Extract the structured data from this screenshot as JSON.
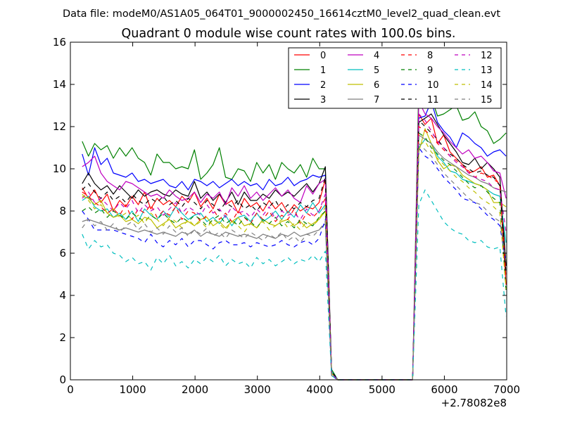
{
  "suptitle": "Data file: modeM0/AS1A05_064T01_9000002450_16614cztM0_level2_quad_clean.evt",
  "chart_data": {
    "type": "line",
    "title": "Quadrant 0 module wise count rates with 100.0s bins.",
    "xlabel": "",
    "ylabel": "",
    "x_offset_label": "+2.78082e8",
    "xlim": [
      0,
      7000
    ],
    "ylim": [
      0,
      16
    ],
    "x_ticks": [
      "0",
      "1000",
      "2000",
      "3000",
      "4000",
      "5000",
      "6000",
      "7000"
    ],
    "y_ticks": [
      "0",
      "2",
      "4",
      "6",
      "8",
      "10",
      "12",
      "14",
      "16"
    ],
    "grid": false,
    "legend_position": "top-right",
    "legend_columns": 4,
    "x_gap": 4500,
    "x_seg1": [
      190,
      290,
      390,
      490,
      590,
      690,
      790,
      890,
      990,
      1090,
      1190,
      1290,
      1390,
      1490,
      1590,
      1690,
      1790,
      1890,
      1990,
      2090,
      2190,
      2290,
      2390,
      2490,
      2590,
      2690,
      2790,
      2890,
      2990,
      3090,
      3190,
      3290,
      3390,
      3490,
      3590,
      3690,
      3790,
      3890,
      3990,
      4090,
      4190,
      4290,
      4390,
      4490
    ],
    "x_seg2": [
      5490,
      5590,
      5690,
      5790,
      5890,
      5990,
      6090,
      6190,
      6290,
      6390,
      6490,
      6590,
      6690,
      6790,
      6890,
      6990
    ],
    "series": [
      {
        "name": "0",
        "color": "#ff0000",
        "dash": "solid",
        "seg1": [
          9.1,
          8.6,
          9.0,
          8.4,
          8.8,
          8.0,
          8.5,
          8.2,
          8.7,
          8.3,
          8.9,
          8.1,
          8.6,
          8.3,
          8.5,
          8.2,
          8.7,
          8.4,
          8.9,
          8.2,
          8.6,
          8.1,
          8.8,
          8.3,
          8.5,
          7.9,
          8.6,
          8.2,
          8.4,
          8.0,
          8.5,
          8.1,
          8.4,
          7.9,
          8.3,
          8.0,
          8.2,
          8.1,
          8.4,
          9.5,
          0.4,
          0,
          0,
          0
        ],
        "seg2": [
          0,
          12.6,
          12.1,
          12.4,
          11.2,
          11.6,
          10.8,
          10.5,
          10.2,
          9.8,
          9.9,
          10.1,
          9.6,
          9.7,
          9.2,
          4.5
        ]
      },
      {
        "name": "1",
        "color": "#008000",
        "dash": "solid",
        "seg1": [
          11.3,
          10.6,
          11.2,
          10.9,
          11.1,
          10.5,
          11.0,
          10.6,
          11.0,
          10.5,
          10.3,
          9.7,
          10.7,
          10.3,
          10.3,
          10.0,
          10.1,
          10.0,
          10.9,
          9.5,
          9.8,
          10.2,
          11.0,
          9.6,
          9.5,
          10.0,
          9.9,
          9.4,
          10.3,
          9.8,
          10.2,
          9.5,
          10.3,
          10.0,
          9.8,
          10.2,
          9.6,
          10.5,
          10.0,
          10.0,
          0.5,
          0,
          0,
          0
        ],
        "seg2": [
          0,
          14.1,
          14.0,
          13.4,
          12.5,
          12.6,
          12.8,
          13.0,
          12.3,
          12.4,
          12.7,
          12.0,
          11.8,
          11.2,
          11.4,
          11.7
        ]
      },
      {
        "name": "2",
        "color": "#0000ff",
        "dash": "solid",
        "seg1": [
          10.7,
          9.7,
          11.0,
          10.2,
          10.5,
          9.8,
          9.7,
          9.6,
          9.8,
          9.4,
          9.5,
          9.3,
          9.4,
          9.5,
          9.2,
          9.1,
          9.4,
          9.0,
          9.5,
          9.4,
          9.2,
          9.4,
          9.1,
          9.3,
          9.5,
          9.2,
          9.4,
          9.2,
          9.3,
          9.0,
          9.5,
          9.2,
          9.3,
          9.6,
          9.2,
          9.4,
          9.5,
          9.7,
          9.6,
          9.7,
          0.4,
          0,
          0,
          0
        ],
        "seg2": [
          0,
          12.4,
          12.5,
          13.2,
          12.2,
          11.8,
          11.5,
          11.0,
          11.7,
          11.5,
          11.2,
          11.0,
          10.6,
          10.8,
          10.9,
          10.6
        ]
      },
      {
        "name": "3",
        "color": "#000000",
        "dash": "solid",
        "seg1": [
          9.3,
          9.8,
          9.3,
          9.0,
          9.2,
          8.8,
          9.2,
          8.9,
          8.6,
          9.0,
          8.7,
          8.9,
          9.0,
          8.8,
          8.7,
          9.0,
          8.8,
          8.7,
          9.4,
          8.6,
          8.9,
          8.5,
          8.8,
          8.4,
          8.9,
          8.3,
          8.9,
          8.5,
          8.5,
          8.8,
          8.6,
          9.0,
          8.7,
          8.9,
          8.7,
          9.0,
          9.3,
          8.9,
          9.3,
          10.1,
          0.4,
          0,
          0,
          0
        ],
        "seg2": [
          0,
          12.2,
          12.4,
          12.6,
          12.1,
          11.6,
          11.2,
          10.8,
          10.3,
          10.2,
          10.5,
          10.0,
          10.3,
          10.0,
          9.6,
          5.4
        ]
      },
      {
        "name": "4",
        "color": "#bf00bf",
        "dash": "solid",
        "seg1": [
          10.1,
          10.3,
          10.6,
          9.8,
          9.4,
          9.2,
          9.0,
          9.4,
          9.3,
          9.1,
          8.9,
          8.7,
          8.8,
          8.6,
          9.0,
          8.7,
          8.5,
          8.6,
          8.9,
          8.4,
          8.8,
          8.6,
          8.9,
          8.3,
          9.1,
          8.7,
          9.2,
          8.6,
          8.9,
          8.5,
          8.8,
          9.1,
          8.7,
          9.0,
          8.6,
          8.4,
          9.2,
          8.8,
          9.3,
          9.5,
          0.3,
          0,
          0,
          0
        ],
        "seg2": [
          0,
          13.2,
          12.6,
          12.4,
          12.0,
          11.7,
          11.3,
          11.0,
          10.7,
          10.9,
          10.5,
          10.6,
          10.3,
          9.9,
          9.8,
          8.6
        ]
      },
      {
        "name": "5",
        "color": "#00bfbf",
        "dash": "solid",
        "seg1": [
          8.5,
          8.7,
          8.2,
          8.0,
          8.1,
          7.7,
          7.9,
          7.6,
          8.0,
          7.5,
          8.1,
          7.8,
          7.6,
          8.0,
          7.7,
          8.2,
          7.9,
          7.6,
          7.8,
          7.9,
          7.5,
          7.7,
          7.4,
          7.8,
          7.3,
          7.7,
          7.8,
          7.5,
          7.9,
          7.5,
          7.7,
          8.0,
          7.6,
          8.0,
          7.7,
          8.3,
          7.9,
          8.4,
          7.9,
          8.3,
          0.4,
          0,
          0,
          0
        ],
        "seg2": [
          0,
          11.0,
          11.4,
          11.2,
          10.6,
          10.3,
          9.9,
          9.8,
          9.5,
          9.4,
          9.3,
          9.2,
          9.0,
          8.8,
          8.7,
          6.5
        ]
      },
      {
        "name": "6",
        "color": "#bfbf00",
        "dash": "solid",
        "seg1": [
          8.7,
          8.6,
          8.3,
          8.5,
          7.9,
          7.7,
          7.8,
          7.5,
          7.6,
          7.4,
          7.7,
          7.6,
          7.2,
          7.4,
          7.6,
          7.2,
          7.4,
          7.5,
          7.3,
          7.6,
          7.7,
          7.3,
          7.5,
          7.2,
          7.5,
          7.7,
          7.3,
          7.4,
          7.2,
          7.6,
          7.4,
          7.3,
          7.5,
          7.6,
          7.3,
          7.5,
          7.2,
          7.4,
          7.6,
          8.0,
          0.3,
          0,
          0,
          0
        ],
        "seg2": [
          0,
          10.8,
          11.9,
          11.2,
          10.4,
          10.0,
          10.2,
          10.1,
          9.7,
          9.5,
          9.3,
          9.2,
          9.0,
          8.4,
          8.4,
          8.2
        ]
      },
      {
        "name": "7",
        "color": "#7f7f7f",
        "dash": "solid",
        "seg1": [
          7.5,
          7.6,
          7.5,
          7.4,
          7.3,
          7.2,
          7.1,
          7.2,
          7.1,
          7.0,
          7.1,
          7.0,
          6.9,
          7.0,
          6.9,
          6.8,
          7.0,
          6.9,
          7.1,
          6.8,
          7.0,
          6.9,
          6.8,
          7.0,
          6.9,
          6.8,
          6.9,
          6.8,
          6.7,
          6.9,
          6.8,
          6.7,
          6.9,
          6.8,
          7.0,
          6.8,
          6.9,
          7.0,
          7.1,
          7.4,
          0.2,
          0,
          0,
          0
        ],
        "seg2": [
          0,
          11.6,
          11.4,
          11.2,
          10.8,
          10.5,
          10.3,
          10.1,
          9.9,
          9.7,
          9.6,
          9.4,
          9.3,
          9.1,
          9.0,
          8.9
        ]
      },
      {
        "name": "8",
        "color": "#ff0000",
        "dash": "dash",
        "seg1": [
          8.9,
          8.7,
          8.4,
          8.2,
          7.9,
          8.1,
          7.8,
          8.3,
          7.6,
          8.1,
          7.9,
          8.3,
          7.7,
          8.0,
          7.8,
          8.2,
          7.6,
          8.0,
          7.9,
          7.5,
          7.8,
          8.1,
          7.6,
          7.9,
          7.5,
          8.0,
          7.7,
          7.4,
          7.9,
          7.6,
          8.0,
          7.5,
          7.8,
          7.6,
          8.1,
          7.4,
          7.9,
          7.7,
          8.0,
          8.6,
          0.3,
          0,
          0,
          0
        ],
        "seg2": [
          0,
          12.0,
          11.8,
          11.6,
          11.2,
          10.9,
          10.6,
          10.4,
          10.1,
          9.9,
          9.6,
          9.8,
          9.7,
          9.5,
          9.3,
          4.8
        ]
      },
      {
        "name": "9",
        "color": "#008000",
        "dash": "dash",
        "seg1": [
          8.0,
          8.2,
          7.9,
          8.1,
          7.7,
          8.0,
          7.8,
          7.6,
          7.9,
          7.7,
          7.5,
          7.8,
          7.6,
          7.9,
          7.6,
          7.4,
          7.7,
          7.5,
          7.8,
          7.6,
          7.3,
          7.6,
          7.8,
          7.4,
          7.6,
          7.3,
          7.7,
          7.5,
          7.2,
          7.6,
          7.4,
          7.7,
          7.3,
          7.5,
          7.2,
          7.6,
          7.4,
          7.3,
          7.7,
          8.0,
          0.3,
          0,
          0,
          0
        ],
        "seg2": [
          0,
          11.7,
          11.5,
          11.0,
          10.7,
          10.4,
          10.2,
          9.9,
          9.6,
          9.3,
          9.1,
          9.2,
          8.9,
          8.6,
          8.4,
          4.2
        ]
      },
      {
        "name": "10",
        "color": "#0000ff",
        "dash": "dash",
        "seg1": [
          8.0,
          7.6,
          7.1,
          7.1,
          7.1,
          7.1,
          7.0,
          6.9,
          6.8,
          6.7,
          6.5,
          6.9,
          6.5,
          6.3,
          6.6,
          6.4,
          6.7,
          6.3,
          6.6,
          6.6,
          6.4,
          6.2,
          6.5,
          6.6,
          6.4,
          6.4,
          6.5,
          6.3,
          6.5,
          6.4,
          6.3,
          6.4,
          6.6,
          6.4,
          6.3,
          6.5,
          6.6,
          6.4,
          6.7,
          7.6,
          0.2,
          0,
          0,
          0
        ],
        "seg2": [
          0,
          11.0,
          10.6,
          10.4,
          10.0,
          9.6,
          9.3,
          9.0,
          8.6,
          8.5,
          8.4,
          8.1,
          7.8,
          7.6,
          7.3,
          5.5
        ]
      },
      {
        "name": "11",
        "color": "#000000",
        "dash": "dash",
        "seg1": [
          9.0,
          9.3,
          8.9,
          8.6,
          8.9,
          8.5,
          8.7,
          8.4,
          8.8,
          8.5,
          8.3,
          8.6,
          8.4,
          8.7,
          8.3,
          8.5,
          8.2,
          8.6,
          8.4,
          8.1,
          8.5,
          8.3,
          8.0,
          8.4,
          8.2,
          8.5,
          8.1,
          8.3,
          8.0,
          8.4,
          8.2,
          8.5,
          8.0,
          8.3,
          8.1,
          8.4,
          8.2,
          8.5,
          8.6,
          9.6,
          0.4,
          0,
          0,
          0
        ],
        "seg2": [
          0,
          12.3,
          12.0,
          11.7,
          11.4,
          11.0,
          10.7,
          10.5,
          10.2,
          10.0,
          9.8,
          9.9,
          9.7,
          9.6,
          9.2,
          5.0
        ]
      },
      {
        "name": "12",
        "color": "#bf00bf",
        "dash": "dash",
        "seg1": [
          8.6,
          8.9,
          8.4,
          8.6,
          8.3,
          8.0,
          8.4,
          8.1,
          8.5,
          7.9,
          8.3,
          8.0,
          8.2,
          7.8,
          8.1,
          8.4,
          7.9,
          8.2,
          8.0,
          7.8,
          8.3,
          7.9,
          8.1,
          7.7,
          8.2,
          7.9,
          8.0,
          7.7,
          8.1,
          7.8,
          8.2,
          7.6,
          8.0,
          7.8,
          7.9,
          7.6,
          8.1,
          7.8,
          8.0,
          8.8,
          0.3,
          0,
          0,
          0
        ],
        "seg2": [
          0,
          12.6,
          12.3,
          11.8,
          11.3,
          11.0,
          10.6,
          10.3,
          10.1,
          9.8,
          9.6,
          9.5,
          9.4,
          9.1,
          9.0,
          7.0
        ]
      },
      {
        "name": "13",
        "color": "#00bfbf",
        "dash": "dash",
        "seg1": [
          6.9,
          6.2,
          6.6,
          6.3,
          6.4,
          6.0,
          5.9,
          5.6,
          5.8,
          5.5,
          5.6,
          5.2,
          5.8,
          5.5,
          5.9,
          5.4,
          5.6,
          5.3,
          5.7,
          5.5,
          5.8,
          5.6,
          5.9,
          5.4,
          5.7,
          5.5,
          5.6,
          5.3,
          5.8,
          5.5,
          5.7,
          5.4,
          5.6,
          5.8,
          5.5,
          5.7,
          5.6,
          5.9,
          5.6,
          6.1,
          0.2,
          0,
          0,
          0
        ],
        "seg2": [
          0,
          8.3,
          9.0,
          8.5,
          8.0,
          7.5,
          7.2,
          7.0,
          6.9,
          6.6,
          6.5,
          6.6,
          6.3,
          6.2,
          6.3,
          3.0
        ]
      },
      {
        "name": "14",
        "color": "#bfbf00",
        "dash": "dash",
        "seg1": [
          8.8,
          8.5,
          8.1,
          8.3,
          7.9,
          8.1,
          7.7,
          7.9,
          7.6,
          7.8,
          7.4,
          7.9,
          7.6,
          7.3,
          7.7,
          7.5,
          7.2,
          7.6,
          7.3,
          7.5,
          7.2,
          7.6,
          7.4,
          7.1,
          7.5,
          7.3,
          7.0,
          7.4,
          7.2,
          7.5,
          7.1,
          7.3,
          7.6,
          7.2,
          7.4,
          7.1,
          7.5,
          7.3,
          7.6,
          8.2,
          0.3,
          0,
          0,
          0
        ],
        "seg2": [
          0,
          11.1,
          11.3,
          10.8,
          10.5,
          10.2,
          9.9,
          9.6,
          9.4,
          9.1,
          8.9,
          8.6,
          8.4,
          8.2,
          7.9,
          4.3
        ]
      },
      {
        "name": "15",
        "color": "#7f7f7f",
        "dash": "dash",
        "seg1": [
          7.2,
          7.6,
          7.3,
          7.5,
          7.1,
          7.4,
          7.0,
          7.3,
          7.5,
          7.1,
          7.4,
          7.0,
          7.2,
          6.9,
          7.3,
          7.0,
          7.2,
          6.8,
          7.1,
          6.9,
          7.2,
          6.8,
          7.0,
          6.7,
          7.1,
          6.9,
          6.7,
          7.0,
          6.8,
          6.6,
          6.9,
          6.7,
          7.0,
          6.6,
          6.8,
          6.5,
          6.9,
          6.8,
          7.1,
          7.5,
          0.2,
          0,
          0,
          0
        ],
        "seg2": [
          0,
          11.2,
          10.9,
          10.6,
          10.2,
          9.8,
          9.5,
          9.2,
          8.9,
          8.6,
          8.4,
          8.3,
          8.0,
          7.7,
          7.5,
          5.6
        ]
      }
    ]
  }
}
